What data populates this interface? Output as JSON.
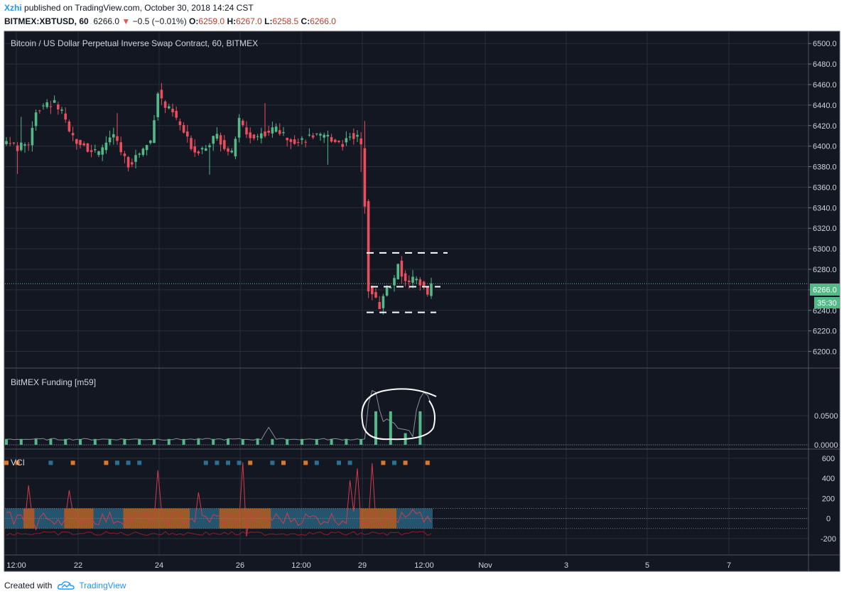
{
  "header": {
    "author": "Xzhi",
    "published": "published on TradingView.com, October 30, 2018 14:24 CST",
    "symbol": "BITMEX:XBTUSD, 60",
    "last": "6266.0",
    "change": "−0.5 (−0.01%)",
    "open_label": "O:",
    "open": "6259.0",
    "high_label": "H:",
    "high": "6267.0",
    "low_label": "L:",
    "low": "6258.5",
    "close_label": "C:",
    "close": "6266.0",
    "down_arrow": "▼"
  },
  "colors": {
    "background": "#131722",
    "grid": "#2a2e39",
    "up": "#53b987",
    "down": "#eb4d5c",
    "teal_band": "#2e6f90",
    "orange_band": "#d9792a",
    "vci_line": "#d23c4a",
    "funding_line": "#8a8e99",
    "author": "#2196f3"
  },
  "footer": {
    "created": "Created with",
    "brand": "TradingView",
    "logo_icon": "cloud-logo-icon"
  },
  "chart_data": [
    {
      "type": "candlestick",
      "title": "Bitcoin / US Dollar Perpetual Inverse Swap Contract, 60, BITMEX",
      "ylim": [
        6190,
        6505
      ],
      "y_ticks": [
        "6500.0",
        "6480.0",
        "6460.0",
        "6440.0",
        "6420.0",
        "6400.0",
        "6380.0",
        "6360.0",
        "6340.0",
        "6320.0",
        "6300.0",
        "6280.0",
        "6260.0",
        "6240.0",
        "6220.0",
        "6200.0"
      ],
      "last_price": "6266.0",
      "countdown": "35:30",
      "x_ticks": [
        "12:00",
        "22",
        "24",
        "26",
        "12:00",
        "29",
        "12:00",
        "Nov",
        "3",
        "5",
        "7"
      ],
      "close_path": [
        [
          0,
          6405
        ],
        [
          3,
          6398
        ],
        [
          6,
          6403
        ],
        [
          8,
          6435
        ],
        [
          11,
          6440
        ],
        [
          13,
          6442
        ],
        [
          15,
          6432
        ],
        [
          17,
          6412
        ],
        [
          19,
          6406
        ],
        [
          21,
          6402
        ],
        [
          23,
          6395
        ],
        [
          25,
          6392
        ],
        [
          27,
          6404
        ],
        [
          29,
          6410
        ],
        [
          31,
          6395
        ],
        [
          33,
          6382
        ],
        [
          35,
          6390
        ],
        [
          37,
          6397
        ],
        [
          39,
          6405
        ],
        [
          41,
          6453
        ],
        [
          43,
          6438
        ],
        [
          45,
          6432
        ],
        [
          47,
          6420
        ],
        [
          49,
          6406
        ],
        [
          51,
          6395
        ],
        [
          53,
          6398
        ],
        [
          55,
          6404
        ],
        [
          57,
          6410
        ],
        [
          59,
          6400
        ],
        [
          61,
          6392
        ],
        [
          63,
          6425
        ],
        [
          65,
          6412
        ],
        [
          67,
          6408
        ],
        [
          69,
          6412
        ],
        [
          71,
          6414
        ],
        [
          73,
          6418
        ],
        [
          75,
          6410
        ],
        [
          77,
          6408
        ],
        [
          79,
          6404
        ],
        [
          81,
          6408
        ],
        [
          83,
          6410
        ],
        [
          85,
          6408
        ],
        [
          87,
          6409
        ],
        [
          89,
          6406
        ],
        [
          91,
          6402
        ],
        [
          93,
          6412
        ],
        [
          95,
          6408
        ],
        [
          96,
          6400
        ],
        [
          97,
          6345
        ],
        [
          98,
          6262
        ],
        [
          99,
          6258
        ],
        [
          100,
          6250
        ],
        [
          101,
          6244
        ],
        [
          103,
          6262
        ],
        [
          105,
          6268
        ],
        [
          106,
          6288
        ],
        [
          107,
          6276
        ],
        [
          109,
          6266
        ],
        [
          111,
          6272
        ],
        [
          113,
          6262
        ],
        [
          114,
          6256
        ],
        [
          115,
          6266
        ]
      ],
      "annotations": {
        "range_top": 6296,
        "range_mid": 6263,
        "range_bottom": 6238
      }
    },
    {
      "type": "bar",
      "title": "BitMEX Funding [m59]",
      "ylim": [
        0,
        0.1
      ],
      "y_ticks": [
        "0.0500",
        "0.0000"
      ],
      "bars_at_index": [
        0,
        4,
        8,
        12,
        16,
        20,
        24,
        28,
        32,
        36,
        40,
        44,
        48,
        52,
        56,
        60,
        64,
        68,
        72,
        76,
        80,
        84,
        88,
        92,
        96,
        100,
        104,
        108,
        112
      ],
      "bar_values": [
        0.01,
        0.01,
        0.01,
        0.01,
        0.01,
        0.01,
        0.01,
        0.01,
        0.01,
        0.01,
        0.01,
        0.01,
        0.01,
        0.01,
        0.01,
        0.01,
        0.01,
        0.01,
        0.01,
        0.01,
        0.01,
        0.01,
        0.01,
        0.01,
        0.01,
        0.0575,
        0.0575,
        0.02,
        0.0575
      ]
    },
    {
      "type": "line",
      "title": "VCI",
      "ylim": [
        -250,
        620
      ],
      "y_ticks": [
        "600",
        "400",
        "200",
        "0",
        "-200"
      ],
      "band_upper": 100,
      "band_lower": -100
    }
  ]
}
